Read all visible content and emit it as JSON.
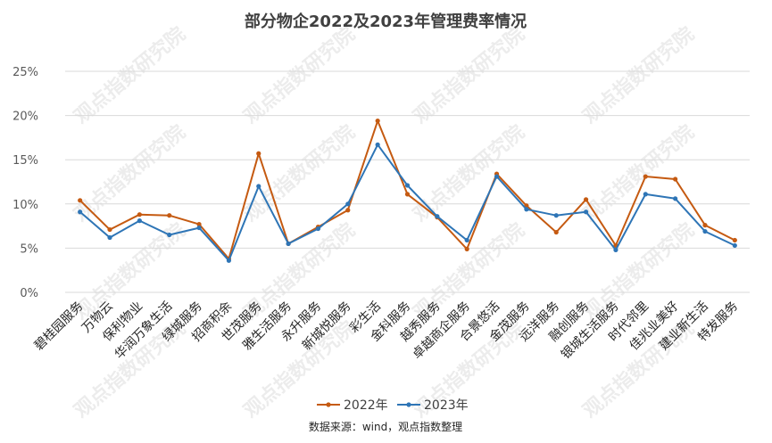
{
  "chart_data": {
    "type": "line",
    "title": "部分物企2022及2023年管理费率情况",
    "source": "数据来源：wind，观点指数整理",
    "watermark": "观点指数研究院",
    "categories": [
      "碧桂园服务",
      "万物云",
      "保利物业",
      "华润万象生活",
      "绿城服务",
      "招商积余",
      "世茂服务",
      "雅生活服务",
      "永升服务",
      "新城悦服务",
      "彩生活",
      "金科服务",
      "越秀服务",
      "卓越商企服务",
      "合景悠活",
      "金茂服务",
      "远洋服务",
      "融创服务",
      "银城生活服务",
      "时代邻里",
      "佳兆业美好",
      "建业新生活",
      "特发服务"
    ],
    "series": [
      {
        "name": "2022年",
        "color": "#c55a11",
        "values": [
          10.4,
          7.1,
          8.8,
          8.7,
          7.7,
          3.8,
          15.7,
          5.5,
          7.4,
          9.3,
          19.4,
          11.1,
          8.5,
          4.9,
          13.4,
          9.8,
          6.8,
          10.5,
          5.3,
          13.1,
          12.8,
          7.6,
          5.9
        ]
      },
      {
        "name": "2023年",
        "color": "#2e75b6",
        "values": [
          9.1,
          6.2,
          8.1,
          6.5,
          7.3,
          3.6,
          12.0,
          5.5,
          7.2,
          10.0,
          16.7,
          12.1,
          8.6,
          5.9,
          13.1,
          9.4,
          8.7,
          9.1,
          4.8,
          11.1,
          10.6,
          6.9,
          5.3
        ]
      }
    ],
    "yticks": [
      "0%",
      "5%",
      "10%",
      "15%",
      "20%",
      "25%"
    ],
    "ylim": [
      0,
      25
    ],
    "grid": true,
    "legend_position": "bottom"
  }
}
